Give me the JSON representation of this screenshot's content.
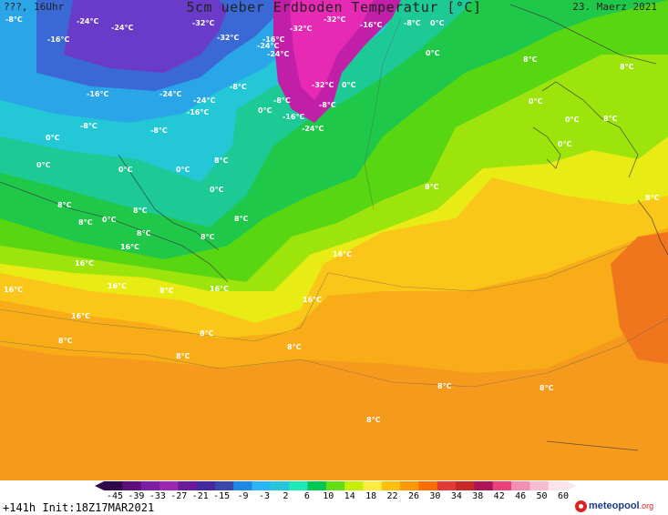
{
  "header": {
    "left": "???, 16Uhr",
    "title": "5cm ueber Erdboden Temperatur [°C]",
    "date": "23. Maerz 2021"
  },
  "footer": {
    "run_info": "+141h Init:18Z17MAR2021",
    "brand": "meteopool",
    "brand_domain": ".org"
  },
  "colorscale": {
    "ticks": [
      "-45",
      "-39",
      "-33",
      "-27",
      "-21",
      "-15",
      "-9",
      "-3",
      "2",
      "6",
      "10",
      "14",
      "18",
      "22",
      "26",
      "30",
      "34",
      "38",
      "42",
      "46",
      "50",
      "60"
    ],
    "colors": [
      "#2e0a4a",
      "#5a0f7a",
      "#7b1fa2",
      "#9c27b0",
      "#6a1b9a",
      "#4527a0",
      "#3949ab",
      "#1e88e5",
      "#29b6f6",
      "#26c6da",
      "#1de9b6",
      "#00c853",
      "#64dd17",
      "#c6ef00",
      "#ffeb3b",
      "#ffc107",
      "#ff9800",
      "#ff6d00",
      "#e53935",
      "#c62828",
      "#ad1457",
      "#ec407a",
      "#f48fb1",
      "#f8bbd0",
      "#fce4ec"
    ]
  },
  "map_labels": [
    {
      "text": "-8°C"
    },
    {
      "text": "-24°C"
    },
    {
      "text": "-24°C"
    },
    {
      "text": "-32°C"
    },
    {
      "text": "-32°C"
    },
    {
      "text": "-16°C"
    },
    {
      "text": "-16°C"
    },
    {
      "text": "-32°C"
    },
    {
      "text": "-32°C"
    },
    {
      "text": "-8°C"
    },
    {
      "text": "0°C"
    },
    {
      "text": "-24°C"
    },
    {
      "text": "-24°C"
    },
    {
      "text": "-16°C"
    },
    {
      "text": "0°C"
    },
    {
      "text": "-8°C"
    },
    {
      "text": "-16°C"
    },
    {
      "text": "-24°C"
    },
    {
      "text": "-24°C"
    },
    {
      "text": "-8°C"
    },
    {
      "text": "-32°C"
    },
    {
      "text": "0°C"
    },
    {
      "text": "-16°C"
    },
    {
      "text": "0°C"
    },
    {
      "text": "-8°C"
    },
    {
      "text": "-8°C"
    },
    {
      "text": "-16°C"
    },
    {
      "text": "-24°C"
    },
    {
      "text": "-8°C"
    },
    {
      "text": "0°C"
    },
    {
      "text": "0°C"
    },
    {
      "text": "0°C"
    },
    {
      "text": "8°C"
    },
    {
      "text": "0°C"
    },
    {
      "text": "8°C"
    },
    {
      "text": "8°C"
    },
    {
      "text": "8°C"
    },
    {
      "text": "0°C"
    },
    {
      "text": "0°C"
    },
    {
      "text": "8°C"
    },
    {
      "text": "0°C"
    },
    {
      "text": "8°C"
    },
    {
      "text": "8°C"
    },
    {
      "text": "8°C"
    },
    {
      "text": "0°C"
    },
    {
      "text": "0°C"
    },
    {
      "text": "8°C"
    },
    {
      "text": "8°C"
    },
    {
      "text": "8°C"
    },
    {
      "text": "16°C"
    },
    {
      "text": "16°C"
    },
    {
      "text": "8°C"
    },
    {
      "text": "16°C"
    },
    {
      "text": "16°C"
    },
    {
      "text": "16°C"
    },
    {
      "text": "16°C"
    },
    {
      "text": "16°C"
    },
    {
      "text": "16°C"
    },
    {
      "text": "8°C"
    },
    {
      "text": "8°C"
    },
    {
      "text": "8°C"
    },
    {
      "text": "8°C"
    },
    {
      "text": "8°C"
    },
    {
      "text": "8°C"
    },
    {
      "text": "8°C"
    },
    {
      "text": "8°C"
    }
  ]
}
